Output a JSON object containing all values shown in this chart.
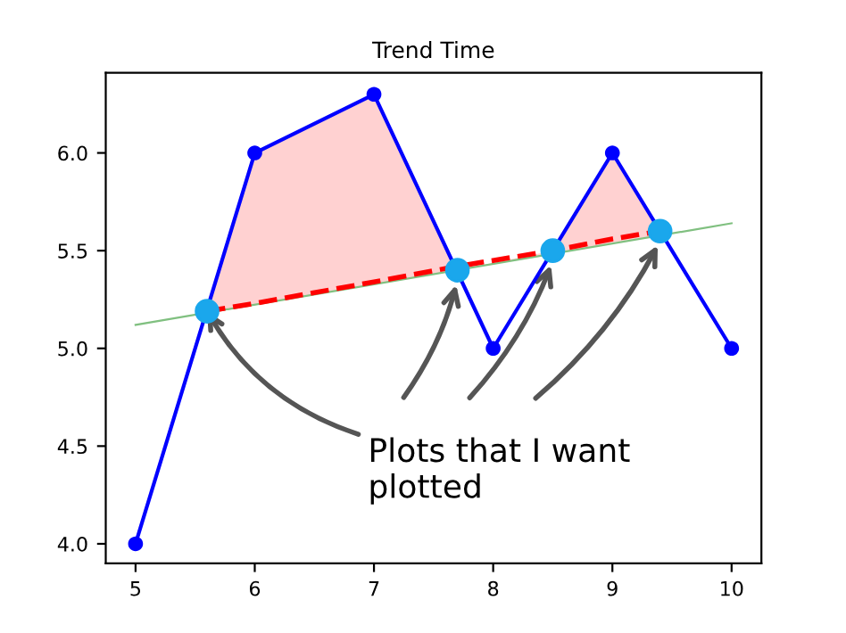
{
  "chart_data": {
    "type": "line",
    "title": "Trend Time",
    "series": [
      {
        "type": "line",
        "color": "#0000ff",
        "marker": "circle",
        "line_style": "solid",
        "x": [
          5,
          6,
          7,
          8,
          9,
          10
        ],
        "values": [
          4.0,
          6.0,
          6.3,
          5.0,
          6.0,
          5.0
        ]
      },
      {
        "type": "line",
        "color": "#80c080",
        "marker": "none",
        "line_style": "solid",
        "x": [
          5,
          10
        ],
        "values": [
          5.12,
          5.64
        ]
      },
      {
        "type": "line",
        "color": "#ff0000",
        "marker": "none",
        "line_style": "dashed",
        "x": [
          5.6,
          6,
          7,
          7.7,
          8.5,
          9,
          9.4
        ],
        "values": [
          5.19,
          5.23,
          5.34,
          5.42,
          5.5,
          5.56,
          5.6
        ],
        "lower": [
          5.18,
          5.22,
          5.33,
          5.4,
          5.48,
          5.54,
          5.58
        ],
        "upper": [
          5.19,
          6.0,
          6.3,
          5.4,
          5.5,
          6.0,
          5.6
        ]
      },
      {
        "type": "scatter",
        "color": "#1aa7ec",
        "marker": "circle",
        "x": [
          5.6,
          7.7,
          8.5,
          9.4
        ],
        "values": [
          5.19,
          5.4,
          5.5,
          5.6
        ]
      }
    ],
    "xlim": [
      4.75,
      10.25
    ],
    "ylim": [
      3.9,
      6.41
    ],
    "xticks": [
      5,
      6,
      7,
      8,
      9,
      10
    ],
    "yticks": [
      {
        "value": 4.0,
        "label": "4.0"
      },
      {
        "value": 4.5,
        "label": "4.5"
      },
      {
        "value": 5.0,
        "label": "5.0"
      },
      {
        "value": 5.5,
        "label": "5.5"
      },
      {
        "value": 6.0,
        "label": "6.0"
      }
    ],
    "annotations": [
      {
        "text": "Plots that I want\nplotted",
        "x": 5.6,
        "y": 5.19
      }
    ]
  }
}
